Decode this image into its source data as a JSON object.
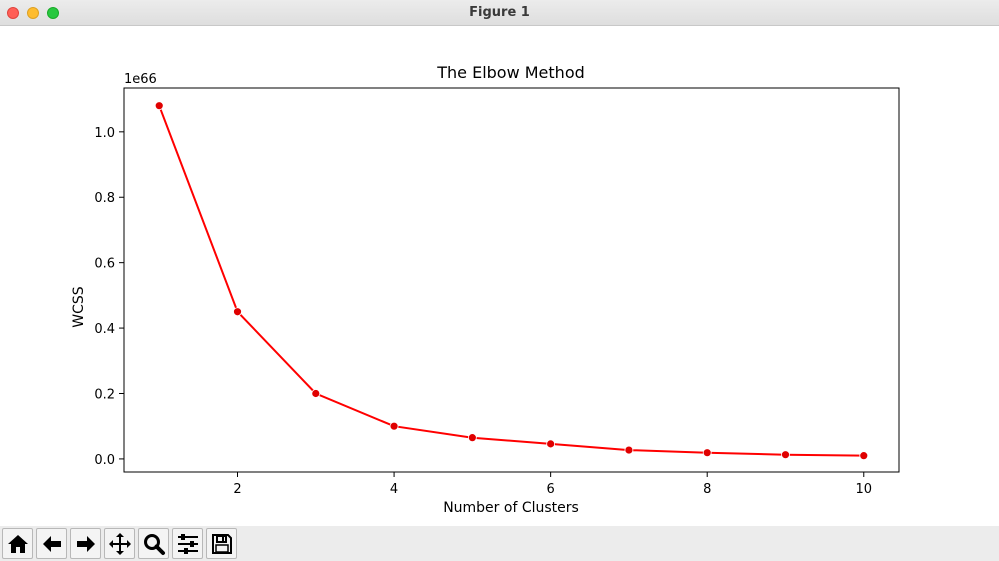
{
  "window": {
    "title": "Figure 1"
  },
  "toolbar": {
    "buttons": [
      {
        "name": "home",
        "icon": "home-icon"
      },
      {
        "name": "back",
        "icon": "arrow-left-icon"
      },
      {
        "name": "forward",
        "icon": "arrow-right-icon"
      },
      {
        "name": "pan",
        "icon": "move-icon"
      },
      {
        "name": "zoom",
        "icon": "magnifier-icon"
      },
      {
        "name": "configure-subplots",
        "icon": "sliders-icon"
      },
      {
        "name": "save",
        "icon": "floppy-disk-icon"
      }
    ]
  },
  "colors": {
    "line": "#ff0000",
    "marker": "#e00000",
    "axes": "#000000"
  },
  "chart_data": {
    "type": "line",
    "title": "The Elbow Method",
    "xlabel": "Number of Clusters",
    "ylabel": "WCSS",
    "offset_text": "1e66",
    "x": [
      1,
      2,
      3,
      4,
      5,
      6,
      7,
      8,
      9,
      10
    ],
    "y": [
      1.08,
      0.45,
      0.2,
      0.1,
      0.065,
      0.046,
      0.027,
      0.019,
      0.013,
      0.01
    ],
    "xlim": [
      0.55,
      10.45
    ],
    "ylim": [
      -0.04,
      1.134
    ],
    "xticks": [
      2,
      4,
      6,
      8,
      10
    ],
    "xtick_labels": [
      "2",
      "4",
      "6",
      "8",
      "10"
    ],
    "yticks": [
      0.0,
      0.2,
      0.4,
      0.6,
      0.8,
      1.0
    ],
    "ytick_labels": [
      "0.0",
      "0.2",
      "0.4",
      "0.6",
      "0.8",
      "1.0"
    ],
    "grid": false,
    "marker": "circle"
  }
}
